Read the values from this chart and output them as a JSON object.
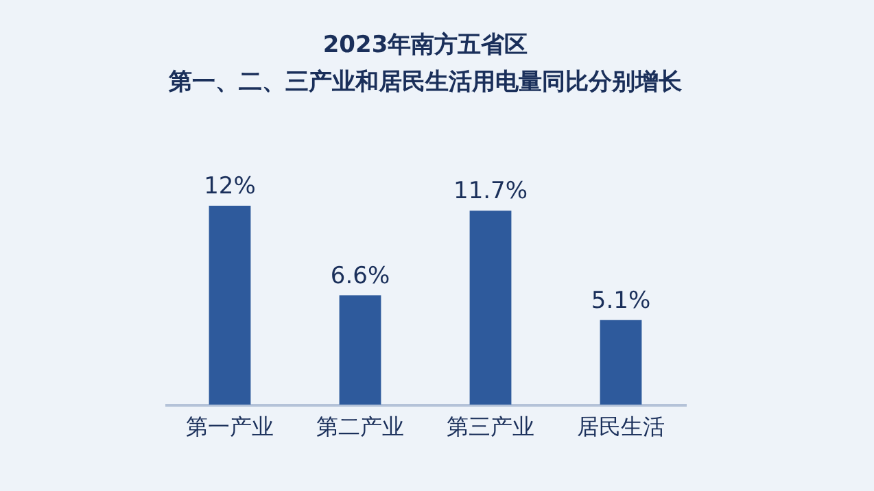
{
  "chart_data": {
    "type": "bar",
    "title": "2023年南方五省区",
    "subtitle": "第一、二、三产业和居民生活用电量同比分别增长",
    "categories": [
      "第一产业",
      "第二产业",
      "第三产业",
      "居民生活"
    ],
    "values": [
      12,
      6.6,
      11.7,
      5.1
    ],
    "value_labels": [
      "12%",
      "6.6%",
      "11.7%",
      "5.1%"
    ],
    "color": "#2e5a9c"
  }
}
